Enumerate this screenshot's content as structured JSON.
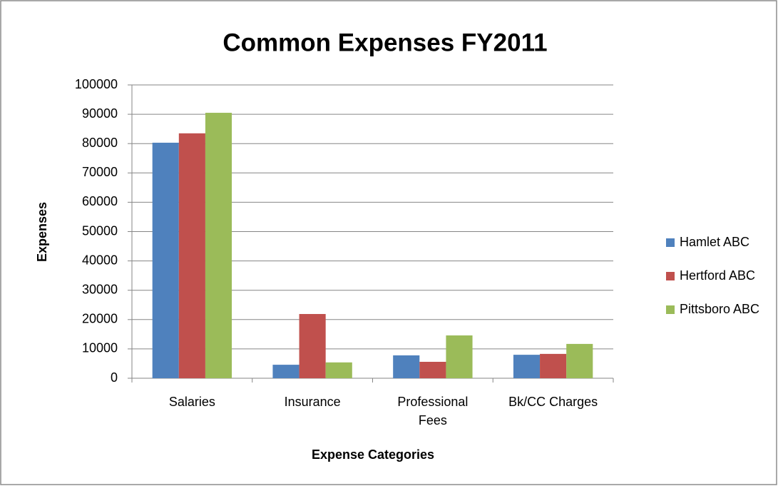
{
  "chart_data": {
    "type": "bar",
    "title": "Common Expenses FY2011",
    "x_label": "Expense Categories",
    "y_label": "Expenses",
    "categories": [
      "Salaries",
      "Insurance",
      "Professional Fees",
      "Bk/CC Charges"
    ],
    "series": [
      {
        "name": "Hamlet ABC",
        "color": "#4f81bd",
        "values": [
          80300,
          4600,
          7800,
          8000
        ]
      },
      {
        "name": "Hertford ABC",
        "color": "#c0504d",
        "values": [
          83500,
          21900,
          5600,
          8300
        ]
      },
      {
        "name": "Pittsboro ABC",
        "color": "#9bbb59",
        "values": [
          90500,
          5400,
          14600,
          11700
        ]
      }
    ],
    "ylim": [
      0,
      100000
    ],
    "yticks": [
      0,
      10000,
      20000,
      30000,
      40000,
      50000,
      60000,
      70000,
      80000,
      90000,
      100000
    ],
    "grid": true,
    "legend": "right"
  }
}
